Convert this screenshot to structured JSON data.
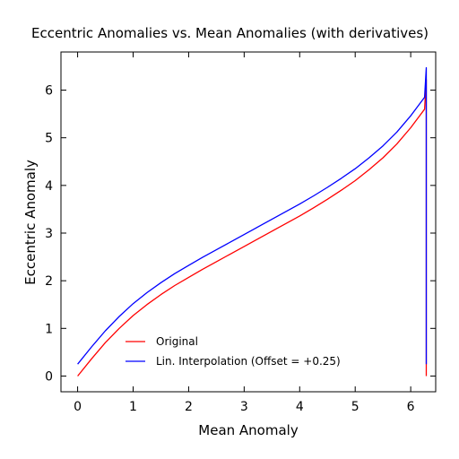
{
  "chart_data": {
    "type": "line",
    "title": "Eccentric Anomalies vs. Mean Anomalies (with derivatives)",
    "xlabel": "Mean Anomaly",
    "ylabel": "Eccentric Anomaly",
    "xlim": [
      -0.3,
      6.45
    ],
    "ylim": [
      -0.33,
      6.8
    ],
    "xticks": [
      0,
      1,
      2,
      3,
      4,
      5,
      6
    ],
    "yticks": [
      0,
      1,
      2,
      3,
      4,
      5,
      6
    ],
    "grid": false,
    "legend_position": "lower-left",
    "series": [
      {
        "name": "Original",
        "color": "#ff0000",
        "x": [
          0.0,
          0.25,
          0.5,
          0.75,
          1.0,
          1.25,
          1.5,
          1.75,
          2.0,
          2.25,
          2.5,
          2.75,
          3.0,
          3.25,
          3.5,
          3.75,
          4.0,
          4.25,
          4.5,
          4.75,
          5.0,
          5.25,
          5.5,
          5.75,
          6.0,
          6.25,
          6.28
        ],
        "y": [
          0.0,
          0.36,
          0.7,
          1.0,
          1.27,
          1.5,
          1.71,
          1.9,
          2.07,
          2.24,
          2.4,
          2.56,
          2.72,
          2.88,
          3.04,
          3.2,
          3.36,
          3.53,
          3.71,
          3.9,
          4.1,
          4.33,
          4.58,
          4.87,
          5.21,
          5.6,
          6.22
        ]
      },
      {
        "name": "Lin. Interpolation (Offset = +0.25)",
        "color": "#0000ff",
        "x": [
          0.0,
          0.25,
          0.5,
          0.75,
          1.0,
          1.25,
          1.5,
          1.75,
          2.0,
          2.25,
          2.5,
          2.75,
          3.0,
          3.25,
          3.5,
          3.75,
          4.0,
          4.25,
          4.5,
          4.75,
          5.0,
          5.25,
          5.5,
          5.75,
          6.0,
          6.25,
          6.28
        ],
        "y": [
          0.25,
          0.61,
          0.95,
          1.25,
          1.52,
          1.75,
          1.96,
          2.15,
          2.32,
          2.49,
          2.65,
          2.81,
          2.97,
          3.13,
          3.29,
          3.45,
          3.61,
          3.78,
          3.96,
          4.15,
          4.35,
          4.58,
          4.83,
          5.12,
          5.46,
          5.85,
          6.47
        ]
      }
    ],
    "drop_segment": {
      "x": 6.28,
      "original_to": 0.0,
      "interpolation_to": 0.25
    }
  }
}
